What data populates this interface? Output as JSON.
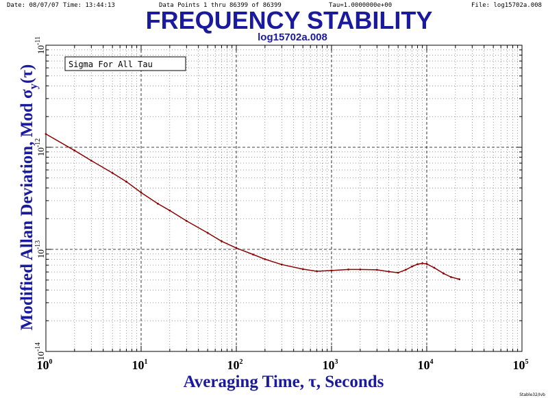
{
  "header": {
    "date": "Date: 08/07/07",
    "time": "Time: 13:44:13",
    "data_points": "Data Points 1 thru 86399 of 86399",
    "tau": "Tau=1.0000000e+00",
    "file": "File: log15702a.008"
  },
  "footer_signature": "Stable32/Ivb",
  "colors": {
    "title": "#1a1a9c",
    "curve": "#8b0000",
    "grid": "#000000",
    "background": "#ffffff"
  },
  "chart_data": {
    "type": "line",
    "title": "FREQUENCY STABILITY",
    "subtitle": "log15702a.008",
    "xlabel": "Averaging Time, τ, Seconds",
    "ylabel_parts": {
      "main": "Modified Allan Deviation, Mod σ",
      "sub": "y",
      "tail": "(τ)"
    },
    "x_scale": "log",
    "y_scale": "log",
    "xlim": [
      1,
      100000
    ],
    "ylim": [
      1e-14,
      1e-11
    ],
    "x_ticks": [
      {
        "base": "10",
        "exp": "0",
        "value": 1
      },
      {
        "base": "10",
        "exp": "1",
        "value": 10
      },
      {
        "base": "10",
        "exp": "2",
        "value": 100
      },
      {
        "base": "10",
        "exp": "3",
        "value": 1000
      },
      {
        "base": "10",
        "exp": "4",
        "value": 10000
      },
      {
        "base": "10",
        "exp": "5",
        "value": 100000
      }
    ],
    "y_ticks": [
      {
        "base": "10",
        "exp": "-11",
        "value": 1e-11
      },
      {
        "base": "10",
        "exp": "-12",
        "value": 1e-12
      },
      {
        "base": "10",
        "exp": "-13",
        "value": 1e-13
      },
      {
        "base": "10",
        "exp": "-14",
        "value": 1e-14
      }
    ],
    "grid": "on (major dashed, minor dotted)",
    "legend": {
      "label": "Sigma For All Tau",
      "placement": "top-left"
    },
    "series": [
      {
        "x": [
          1,
          2,
          3,
          5,
          7,
          10,
          15,
          20,
          30,
          50,
          70,
          100,
          150,
          200,
          300,
          500,
          700,
          1000,
          1500,
          2000,
          3000,
          4000,
          5000,
          6000,
          7000,
          8000,
          9000,
          10000,
          12000,
          15000,
          18000,
          22000
        ],
        "y": [
          1.35e-12,
          9.3e-13,
          7.4e-13,
          5.6e-13,
          4.6e-13,
          3.6e-13,
          2.8e-13,
          2.4e-13,
          1.9e-13,
          1.45e-13,
          1.2e-13,
          1.03e-13,
          8.9e-14,
          8e-14,
          7.1e-14,
          6.4e-14,
          6.1e-14,
          6.2e-14,
          6.35e-14,
          6.35e-14,
          6.3e-14,
          6.05e-14,
          5.9e-14,
          6.3e-14,
          6.8e-14,
          7.15e-14,
          7.3e-14,
          7.2e-14,
          6.6e-14,
          5.8e-14,
          5.35e-14,
          5.1e-14
        ]
      }
    ]
  }
}
